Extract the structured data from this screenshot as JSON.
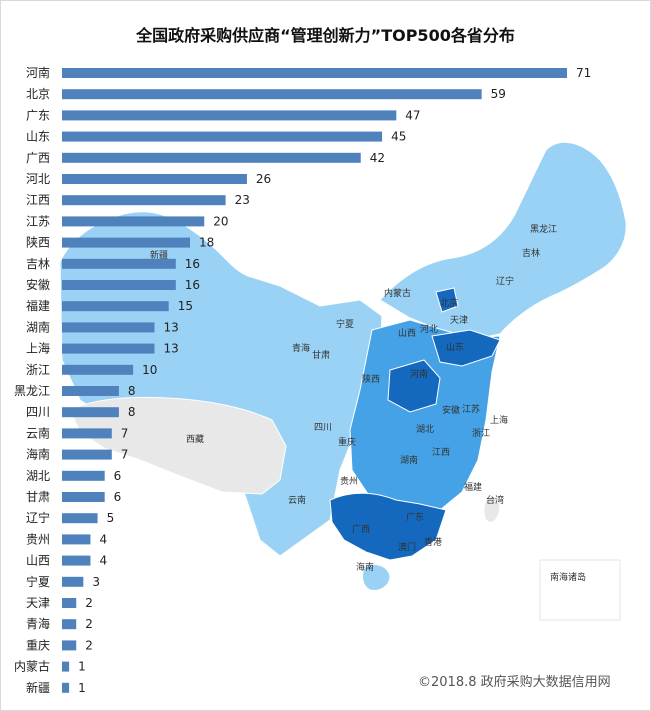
{
  "title": "全国政府采购供应商“管理创新力”TOP500各省分布",
  "source": "©2018.8 政府采购大数据信用网",
  "colors": {
    "bar": "#4f81bd",
    "map_light": "#99d2f4",
    "map_mid": "#45a2e6",
    "map_dark": "#1468be",
    "map_gray": "#e8e8e8"
  },
  "chart_data": {
    "type": "bar",
    "orientation": "horizontal",
    "title": "全国政府采购供应商“管理创新力”TOP500各省分布",
    "categories": [
      "河南",
      "北京",
      "广东",
      "山东",
      "广西",
      "河北",
      "江西",
      "江苏",
      "陕西",
      "吉林",
      "安徽",
      "福建",
      "湖南",
      "上海",
      "浙江",
      "黑龙江",
      "四川",
      "云南",
      "海南",
      "湖北",
      "甘肃",
      "辽宁",
      "贵州",
      "山西",
      "宁夏",
      "天津",
      "青海",
      "重庆",
      "内蒙古",
      "新疆"
    ],
    "values": [
      71,
      59,
      47,
      45,
      42,
      26,
      23,
      20,
      18,
      16,
      16,
      15,
      13,
      13,
      10,
      8,
      8,
      7,
      7,
      6,
      6,
      5,
      4,
      4,
      3,
      2,
      2,
      2,
      1,
      1
    ],
    "xlim": [
      0,
      71
    ],
    "grid": false,
    "legend": "none"
  },
  "map": {
    "labels": [
      "黑龙江",
      "吉林",
      "辽宁",
      "内蒙古",
      "北京",
      "天津",
      "河北",
      "山西",
      "山东",
      "宁夏",
      "青海",
      "甘肃",
      "陕西",
      "河南",
      "安徽",
      "江苏",
      "上海",
      "浙江",
      "湖北",
      "四川",
      "重庆",
      "湖南",
      "江西",
      "贵州",
      "福建",
      "云南",
      "台湾",
      "广西",
      "广东",
      "澳门",
      "香港",
      "海南",
      "新疆",
      "西藏",
      "南海诸岛"
    ]
  }
}
